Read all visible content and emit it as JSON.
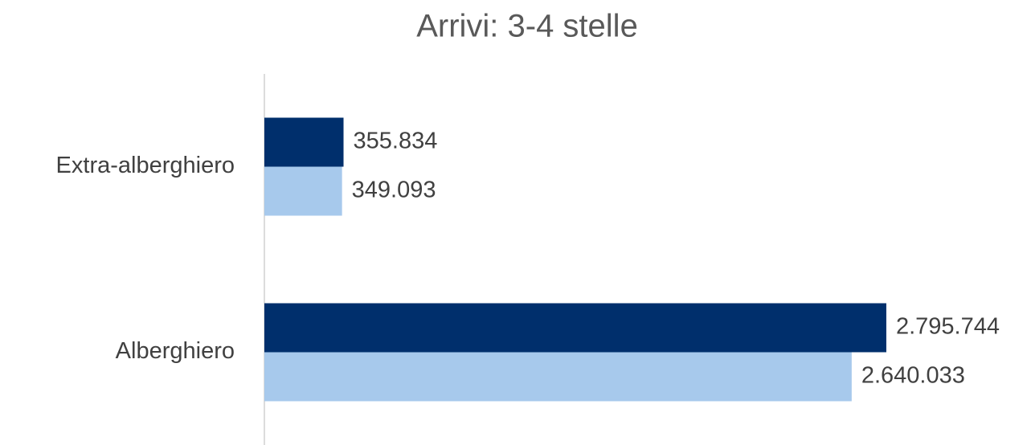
{
  "chart_data": {
    "type": "hbar",
    "title": "Arrivi: 3-4 stelle",
    "categories": [
      "Extra-alberghiero",
      "Alberghiero"
    ],
    "series": [
      {
        "color": "#002f6c",
        "values": [
          355834,
          2795744
        ],
        "value_labels": [
          "355.834",
          "2.795.744"
        ]
      },
      {
        "color": "#a7c9ec",
        "values": [
          349093,
          2640033
        ],
        "value_labels": [
          "349.093",
          "2.640.033"
        ]
      }
    ],
    "xlim": [
      0,
      3000000
    ]
  }
}
